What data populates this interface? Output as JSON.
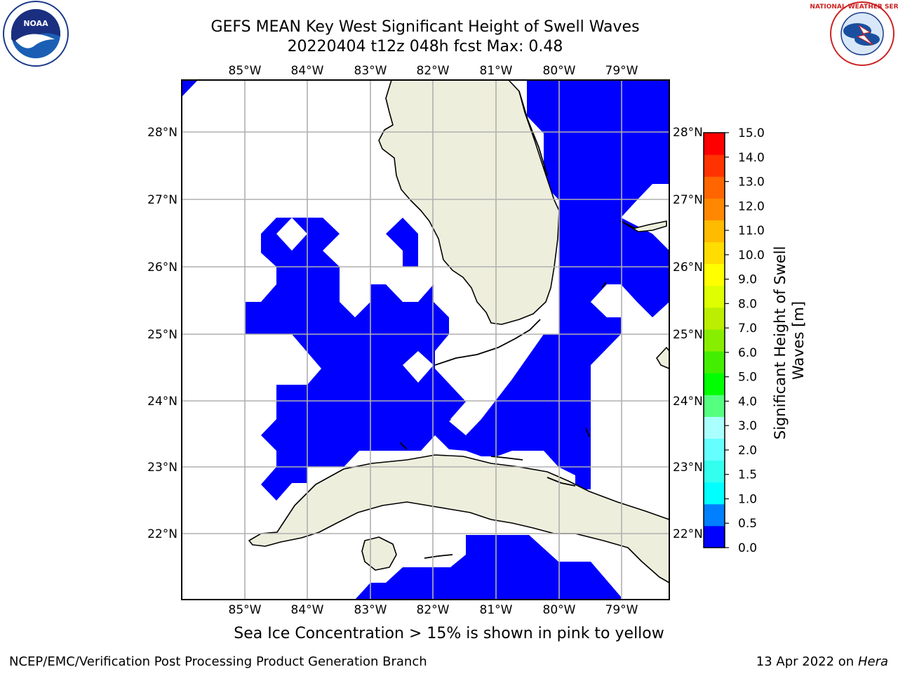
{
  "title_line1": "GEFS MEAN Key West Significant Height of Swell Waves",
  "title_line2": "20220404 t12z 048h fcst   Max: 0.48",
  "logos": {
    "left": {
      "name": "NOAA",
      "ring_text": "NATIONAL OCEANIC AND ATMOSPHERIC ADMINISTRATION · U.S. DEPARTMENT OF COMMERCE"
    },
    "right": {
      "name": "NATIONAL WEATHER SERVICE"
    }
  },
  "map": {
    "lon_labels": [
      "85°W",
      "84°W",
      "83°W",
      "82°W",
      "81°W",
      "80°W",
      "79°W"
    ],
    "lat_labels": [
      "28°N",
      "27°N",
      "26°N",
      "25°N",
      "24°N",
      "23°N",
      "22°N"
    ],
    "lon_range": [
      -86,
      -78.3
    ],
    "lat_range": [
      21,
      28.75
    ],
    "field_color": "#0000ff",
    "land_color": "#eeeedd",
    "grid_color": "#b0b0b0"
  },
  "colorbar": {
    "label": "Significant Height of Swell Waves [m]",
    "label_lines": [
      "Significant Height of Swell",
      "Waves [m]"
    ],
    "tick_labels": [
      "0.0",
      "0.5",
      "1.0",
      "1.5",
      "2.0",
      "3.0",
      "4.0",
      "5.0",
      "6.0",
      "7.0",
      "8.0",
      "9.0",
      "10.0",
      "11.0",
      "12.0",
      "13.0",
      "14.0",
      "15.0"
    ],
    "colors": [
      "#0000ff",
      "#0080ff",
      "#00ffff",
      "#33ffee",
      "#66ffff",
      "#aaffff",
      "#55ff80",
      "#00ff00",
      "#44ee00",
      "#88ee00",
      "#bbee00",
      "#ddff00",
      "#ffff00",
      "#ffdd00",
      "#ffbb00",
      "#ff8800",
      "#ff6600",
      "#ff3300",
      "#ff0000"
    ]
  },
  "note": "Sea Ice Concentration > 15% is shown in pink to yellow",
  "footer": {
    "left": "NCEP/EMC/Verification Post Processing Product Generation Branch",
    "date": "13 Apr 2022 on",
    "host": "Hera"
  }
}
